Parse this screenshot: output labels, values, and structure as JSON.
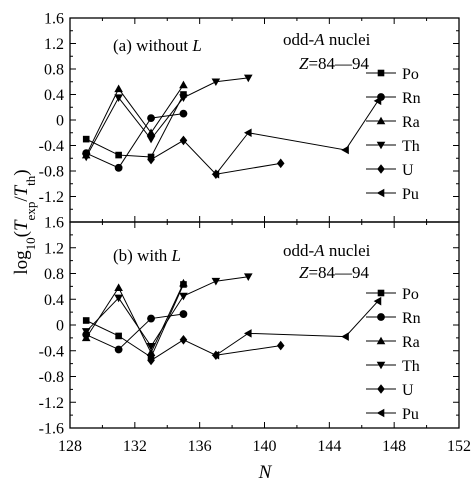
{
  "chart_data": {
    "type": "line",
    "x_axis": {
      "label_parts": [
        {
          "t": "N",
          "italic": true
        }
      ],
      "range": [
        128,
        152
      ],
      "ticks": [
        "128",
        "132",
        "136",
        "140",
        "144",
        "148",
        "152"
      ]
    },
    "y_axis": {
      "label_parts": [
        {
          "t": "log",
          "italic": false
        },
        {
          "t": "10",
          "sub": true
        },
        {
          "t": "(",
          "italic": false
        },
        {
          "t": "T",
          "italic": true
        },
        {
          "t": "exp",
          "sub": true
        },
        {
          "t": "/",
          "italic": false
        },
        {
          "t": "T",
          "italic": true
        },
        {
          "t": "th",
          "sub": true
        },
        {
          "t": ")",
          "italic": false
        }
      ]
    },
    "panels": [
      {
        "panel_id": "a",
        "tag_parts": [
          {
            "t": "(a)  without "
          },
          {
            "t": "L",
            "italic": true
          }
        ],
        "note_line1_parts": [
          {
            "t": "odd-"
          },
          {
            "t": "A",
            "italic": true
          },
          {
            "t": " nuclei"
          }
        ],
        "note_line2_parts": [
          {
            "t": "Z",
            "italic": true
          },
          {
            "t": "=84—94"
          }
        ],
        "ylim": [
          -1.6,
          1.6
        ],
        "yticks": [
          "1.6",
          "1.2",
          "0.8",
          "0.4",
          "0",
          "-0.4",
          "-0.8",
          "-1.2",
          "-1.6"
        ],
        "legend_position": "right",
        "series": [
          {
            "name": "Po",
            "marker": "square",
            "points": [
              [
                129,
                -0.3
              ],
              [
                131,
                -0.55
              ],
              [
                133,
                -0.58
              ],
              [
                135,
                0.4
              ]
            ]
          },
          {
            "name": "Rn",
            "marker": "circle",
            "points": [
              [
                129,
                -0.52
              ],
              [
                131,
                -0.75
              ],
              [
                133,
                0.03
              ],
              [
                135,
                0.1
              ]
            ]
          },
          {
            "name": "Ra",
            "marker": "triangle-up",
            "points": [
              [
                129,
                -0.55
              ],
              [
                131,
                0.49
              ],
              [
                133,
                -0.2
              ],
              [
                135,
                0.55
              ]
            ]
          },
          {
            "name": "Th",
            "marker": "triangle-down",
            "points": [
              [
                129,
                -0.58
              ],
              [
                131,
                0.35
              ],
              [
                133,
                -0.3
              ],
              [
                135,
                0.35
              ],
              [
                137,
                0.6
              ],
              [
                139,
                0.66
              ]
            ]
          },
          {
            "name": "U",
            "marker": "diamond",
            "points": [
              [
                133,
                -0.62
              ],
              [
                135,
                -0.32
              ],
              [
                137,
                -0.85
              ],
              [
                141,
                -0.68
              ]
            ]
          },
          {
            "name": "Pu",
            "marker": "triangle-left",
            "points": [
              [
                137,
                -0.85
              ],
              [
                139,
                -0.2
              ],
              [
                145,
                -0.47
              ],
              [
                147,
                0.3
              ]
            ]
          }
        ]
      },
      {
        "panel_id": "b",
        "tag_parts": [
          {
            "t": "(b)  with "
          },
          {
            "t": "L",
            "italic": true
          }
        ],
        "note_line1_parts": [
          {
            "t": "odd-"
          },
          {
            "t": "A",
            "italic": true
          },
          {
            "t": " nuclei"
          }
        ],
        "note_line2_parts": [
          {
            "t": "Z",
            "italic": true
          },
          {
            "t": "=84—94"
          }
        ],
        "ylim": [
          -1.6,
          1.6
        ],
        "yticks": [
          "1.6",
          "1.2",
          "0.8",
          "0.4",
          "0",
          "-0.4",
          "-0.8",
          "-1.2",
          "-1.6"
        ],
        "legend_position": "right",
        "series": [
          {
            "name": "Po",
            "marker": "square",
            "points": [
              [
                129,
                0.07
              ],
              [
                131,
                -0.17
              ],
              [
                133,
                -0.5
              ],
              [
                135,
                0.63
              ]
            ]
          },
          {
            "name": "Rn",
            "marker": "circle",
            "points": [
              [
                129,
                -0.15
              ],
              [
                131,
                -0.38
              ],
              [
                133,
                0.1
              ],
              [
                135,
                0.17
              ]
            ]
          },
          {
            "name": "Ra",
            "marker": "triangle-up",
            "points": [
              [
                129,
                -0.2
              ],
              [
                131,
                0.58
              ],
              [
                133,
                -0.43
              ],
              [
                135,
                0.65
              ]
            ]
          },
          {
            "name": "Th",
            "marker": "triangle-down",
            "points": [
              [
                129,
                -0.1
              ],
              [
                131,
                0.42
              ],
              [
                133,
                -0.33
              ],
              [
                135,
                0.45
              ],
              [
                137,
                0.68
              ],
              [
                139,
                0.75
              ]
            ]
          },
          {
            "name": "U",
            "marker": "diamond",
            "points": [
              [
                133,
                -0.55
              ],
              [
                135,
                -0.23
              ],
              [
                137,
                -0.47
              ],
              [
                141,
                -0.32
              ]
            ]
          },
          {
            "name": "Pu",
            "marker": "triangle-left",
            "points": [
              [
                137,
                -0.47
              ],
              [
                139,
                -0.13
              ],
              [
                145,
                -0.18
              ],
              [
                147,
                0.37
              ]
            ]
          }
        ]
      }
    ]
  }
}
